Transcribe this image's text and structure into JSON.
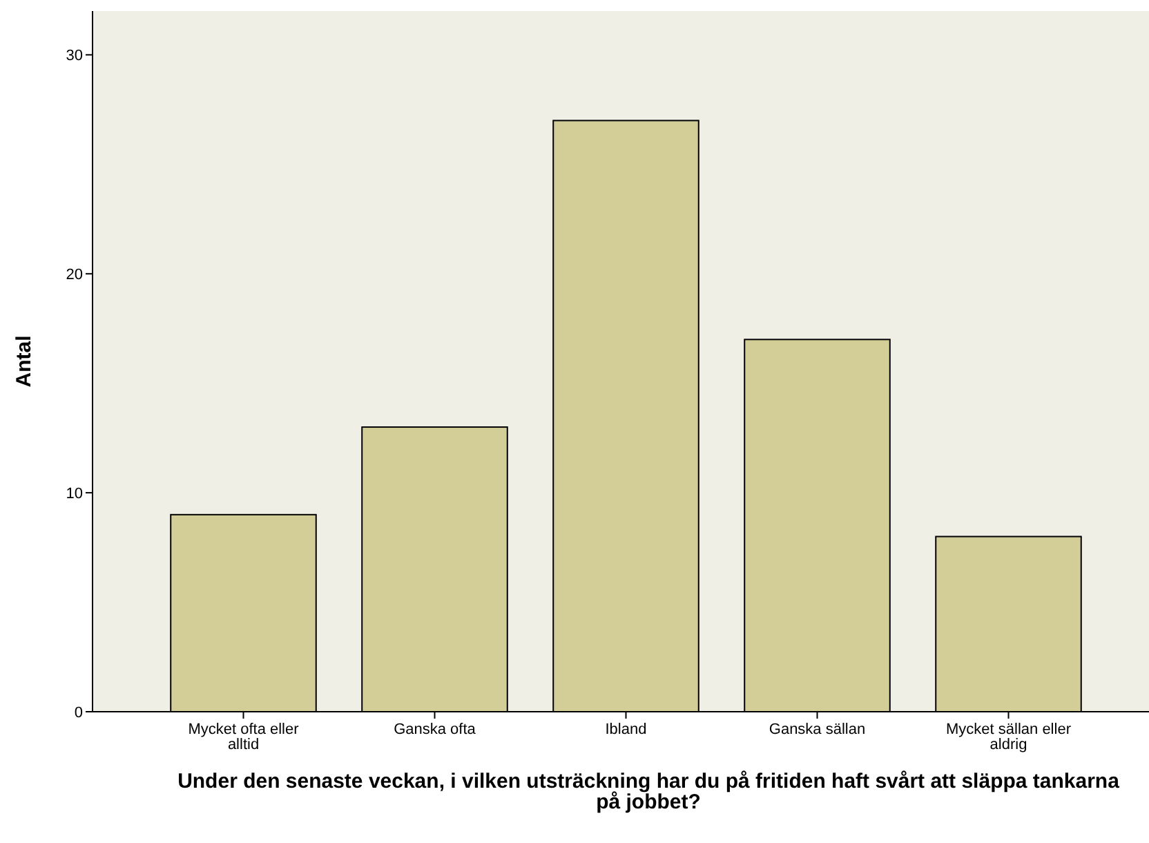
{
  "chart_data": {
    "type": "bar",
    "xlabel": "Under den senaste veckan, i vilken utsträckning har du på fritiden haft svårt att släppa tankarna på jobbet?",
    "ylabel": "Antal",
    "categories": [
      "Mycket ofta eller alltid",
      "Ganska ofta",
      "Ibland",
      "Ganska sällan",
      "Mycket sällan eller aldrig"
    ],
    "values": [
      9,
      13,
      27,
      17,
      8
    ],
    "color": "#d3ce97",
    "ylim": [
      0,
      32
    ],
    "yticks": [
      0,
      10,
      20,
      30
    ],
    "grid": false
  }
}
